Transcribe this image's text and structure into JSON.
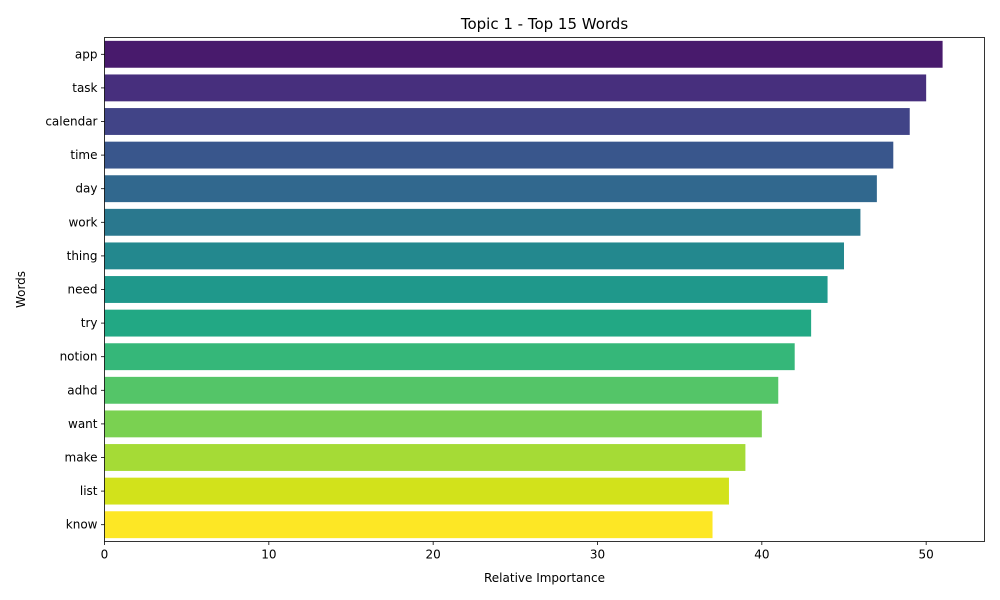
{
  "chart_data": {
    "type": "bar",
    "orientation": "horizontal",
    "title": "Topic 1 - Top 15 Words",
    "xlabel": "Relative Importance",
    "ylabel": "Words",
    "categories": [
      "app",
      "task",
      "calendar",
      "time",
      "day",
      "work",
      "thing",
      "need",
      "try",
      "notion",
      "adhd",
      "want",
      "make",
      "list",
      "know"
    ],
    "values": [
      51,
      50,
      49,
      48,
      47,
      46,
      45,
      44,
      43,
      42,
      41,
      40,
      39,
      38,
      37
    ],
    "colors": [
      "#481a6c",
      "#472f7d",
      "#414487",
      "#39568c",
      "#31688e",
      "#2a788e",
      "#23888e",
      "#1f988b",
      "#22a884",
      "#35b779",
      "#54c568",
      "#7ad151",
      "#a5db36",
      "#d2e21b",
      "#fde725"
    ],
    "xlim": [
      0,
      53.55
    ],
    "xticks": [
      0,
      10,
      20,
      30,
      40,
      50
    ],
    "grid": false,
    "legend": "none"
  }
}
